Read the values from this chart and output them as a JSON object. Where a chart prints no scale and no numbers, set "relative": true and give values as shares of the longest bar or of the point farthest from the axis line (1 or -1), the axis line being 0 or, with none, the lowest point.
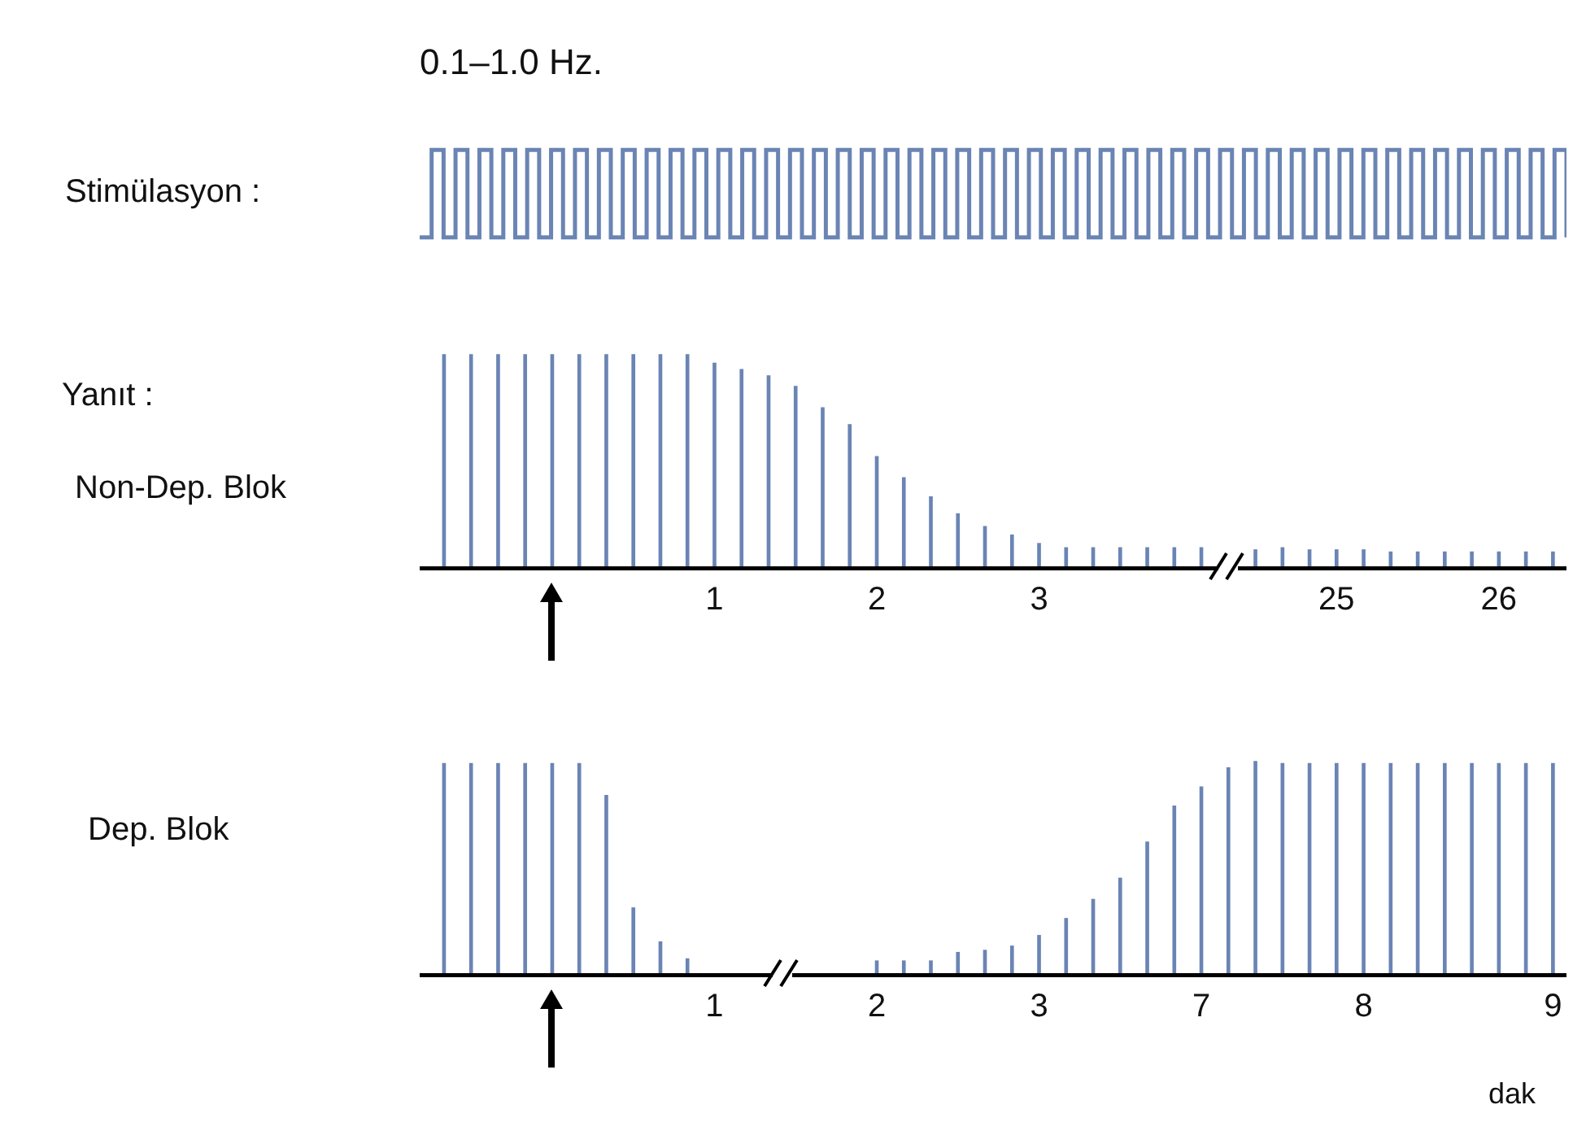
{
  "chart_data": [
    {
      "type": "step",
      "relative": true,
      "title": "0.1–1.0 Hz.",
      "ylabel": "Stimülasyon :",
      "tick_labels": false,
      "color": "#6a84b4",
      "categories": [
        null,
        null,
        null,
        null,
        null,
        null,
        null,
        null,
        null,
        null,
        null,
        null,
        null,
        null,
        null,
        null,
        null,
        null,
        null,
        null,
        null,
        null,
        null,
        null,
        null,
        null,
        null,
        null,
        null,
        null,
        null,
        null,
        null,
        null,
        null,
        null,
        null,
        null,
        null,
        null,
        null,
        null,
        null,
        null,
        null,
        null,
        null,
        null,
        null,
        null,
        null,
        null,
        null,
        null,
        null,
        null,
        null,
        null,
        null,
        null,
        null,
        null,
        null,
        null,
        null,
        null,
        null,
        null,
        null,
        null,
        null,
        null,
        null,
        null,
        null,
        null,
        null,
        null,
        null,
        null,
        null,
        null,
        null,
        null,
        null,
        null,
        null,
        null,
        null,
        null,
        null,
        null,
        null,
        null,
        null,
        null,
        null
      ],
      "values": [
        0,
        1,
        0,
        1,
        0,
        1,
        0,
        1,
        0,
        1,
        0,
        1,
        0,
        1,
        0,
        1,
        0,
        1,
        0,
        1,
        0,
        1,
        0,
        1,
        0,
        1,
        0,
        1,
        0,
        1,
        0,
        1,
        0,
        1,
        0,
        1,
        0,
        1,
        0,
        1,
        0,
        1,
        0,
        1,
        0,
        1,
        0,
        1,
        0,
        1,
        0,
        1,
        0,
        1,
        0,
        1,
        0,
        1,
        0,
        1,
        0,
        1,
        0,
        1,
        0,
        1,
        0,
        1,
        0,
        1,
        0,
        1,
        0,
        1,
        0,
        1,
        0,
        1,
        0,
        1,
        0,
        1,
        0,
        1,
        0,
        1,
        0,
        1,
        0,
        1,
        0,
        1,
        0,
        1,
        0,
        1,
        0
      ]
    },
    {
      "type": "bar",
      "relative": true,
      "annotations": [
        "Yanıt :",
        "Non-Dep. Blok"
      ],
      "tick_labels": "x",
      "color": "#6a84b4",
      "categories": [
        null,
        null,
        null,
        null,
        null,
        null,
        null,
        null,
        null,
        null,
        "1",
        null,
        null,
        null,
        null,
        null,
        "2",
        null,
        null,
        null,
        null,
        null,
        "3",
        null,
        null,
        null,
        null,
        null,
        null,
        null,
        null,
        null,
        null,
        "25",
        null,
        null,
        null,
        null,
        null,
        "26",
        null,
        null
      ],
      "values": [
        1,
        1,
        1,
        1,
        1,
        1,
        1,
        1,
        1,
        1,
        0.96,
        0.93,
        0.9,
        0.85,
        0.75,
        0.67,
        0.52,
        0.42,
        0.33,
        0.25,
        0.19,
        0.15,
        0.11,
        0.09,
        0.09,
        0.09,
        0.09,
        0.09,
        0.09,
        null,
        0.08,
        0.09,
        0.08,
        0.08,
        0.08,
        0.07,
        0.07,
        0.07,
        0.07,
        0.07,
        0.07,
        0.07
      ]
    },
    {
      "type": "bar",
      "relative": true,
      "ylabel": "Dep. Blok",
      "xlabel": "dak",
      "tick_labels": "x",
      "color": "#6a84b4",
      "categories": [
        null,
        null,
        null,
        null,
        null,
        null,
        null,
        null,
        null,
        null,
        "1",
        null,
        null,
        null,
        null,
        null,
        "2",
        null,
        null,
        null,
        null,
        null,
        "3",
        null,
        null,
        null,
        null,
        null,
        "7",
        null,
        null,
        null,
        null,
        null,
        "8",
        null,
        null,
        null,
        null,
        null,
        null,
        "9"
      ],
      "values": [
        0.99,
        0.99,
        0.99,
        0.99,
        0.99,
        0.99,
        0.84,
        0.31,
        0.15,
        0.07,
        null,
        null,
        null,
        null,
        null,
        null,
        0.06,
        0.06,
        0.06,
        0.1,
        0.11,
        0.13,
        0.18,
        0.26,
        0.35,
        0.45,
        0.62,
        0.79,
        0.88,
        0.97,
        1,
        0.99,
        0.99,
        0.99,
        0.99,
        0.99,
        0.99,
        0.99,
        0.99,
        0.99,
        0.99,
        0.99
      ]
    }
  ]
}
